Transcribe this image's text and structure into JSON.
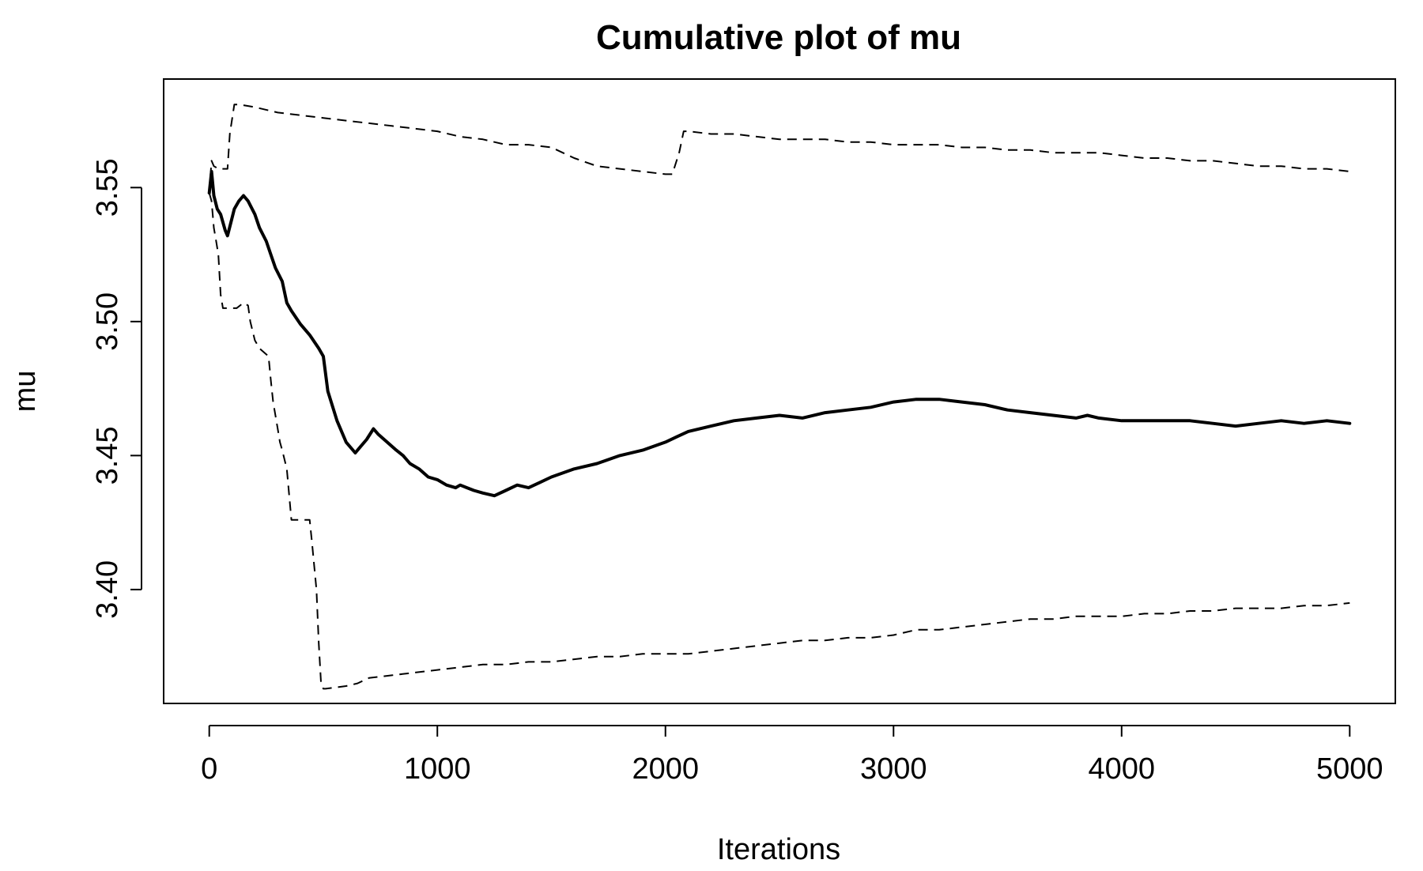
{
  "chart_data": {
    "type": "line",
    "title": "Cumulative plot of mu",
    "xlabel": "Iterations",
    "ylabel": "mu",
    "xlim": [
      -200,
      5200
    ],
    "ylim": [
      3.3575,
      3.5905
    ],
    "xticks": [
      0,
      1000,
      2000,
      3000,
      4000,
      5000
    ],
    "xtick_labels": [
      "0",
      "1000",
      "2000",
      "3000",
      "4000",
      "5000"
    ],
    "yticks": [
      3.4,
      3.45,
      3.5,
      3.55
    ],
    "ytick_labels": [
      "3.40",
      "3.45",
      "3.50",
      "3.55"
    ],
    "grid": false,
    "legend": "none",
    "series": [
      {
        "style": "solid",
        "x": [
          0,
          10,
          20,
          35,
          50,
          70,
          80,
          95,
          110,
          130,
          150,
          170,
          200,
          220,
          250,
          270,
          290,
          320,
          340,
          360,
          400,
          440,
          480,
          500,
          520,
          560,
          600,
          640,
          660,
          690,
          720,
          740,
          780,
          820,
          850,
          880,
          920,
          960,
          1000,
          1040,
          1080,
          1100,
          1130,
          1160,
          1200,
          1250,
          1300,
          1350,
          1400,
          1450,
          1500,
          1600,
          1700,
          1800,
          1900,
          2000,
          2050,
          2100,
          2200,
          2300,
          2400,
          2500,
          2600,
          2700,
          2800,
          2900,
          3000,
          3100,
          3150,
          3200,
          3300,
          3400,
          3500,
          3600,
          3700,
          3800,
          3850,
          3900,
          4000,
          4100,
          4200,
          4300,
          4400,
          4500,
          4600,
          4700,
          4800,
          4900,
          5000
        ],
        "y": [
          3.548,
          3.556,
          3.547,
          3.542,
          3.54,
          3.534,
          3.532,
          3.537,
          3.542,
          3.545,
          3.547,
          3.545,
          3.54,
          3.535,
          3.53,
          3.525,
          3.52,
          3.515,
          3.507,
          3.504,
          3.499,
          3.495,
          3.49,
          3.487,
          3.474,
          3.463,
          3.455,
          3.451,
          3.453,
          3.456,
          3.46,
          3.458,
          3.455,
          3.452,
          3.45,
          3.447,
          3.445,
          3.442,
          3.441,
          3.439,
          3.438,
          3.439,
          3.438,
          3.437,
          3.436,
          3.435,
          3.437,
          3.439,
          3.438,
          3.44,
          3.442,
          3.445,
          3.447,
          3.45,
          3.452,
          3.455,
          3.457,
          3.459,
          3.461,
          3.463,
          3.464,
          3.465,
          3.464,
          3.466,
          3.467,
          3.468,
          3.47,
          3.471,
          3.471,
          3.471,
          3.47,
          3.469,
          3.467,
          3.466,
          3.465,
          3.464,
          3.465,
          3.464,
          3.463,
          3.463,
          3.463,
          3.463,
          3.462,
          3.461,
          3.462,
          3.463,
          3.462,
          3.463,
          3.462
        ]
      },
      {
        "style": "dashed",
        "x": [
          0,
          10,
          20,
          40,
          80,
          90,
          110,
          130,
          200,
          300,
          400,
          500,
          600,
          700,
          800,
          900,
          1000,
          1100,
          1200,
          1300,
          1400,
          1500,
          1600,
          1700,
          1800,
          1900,
          2000,
          2030,
          2060,
          2080,
          2100,
          2200,
          2300,
          2400,
          2500,
          2600,
          2700,
          2800,
          2900,
          3000,
          3100,
          3200,
          3300,
          3400,
          3500,
          3600,
          3700,
          3800,
          3900,
          4000,
          4100,
          4200,
          4300,
          4400,
          4500,
          4600,
          4700,
          4800,
          4900,
          5000
        ],
        "y": [
          3.548,
          3.56,
          3.558,
          3.557,
          3.557,
          3.57,
          3.581,
          3.581,
          3.58,
          3.578,
          3.577,
          3.576,
          3.575,
          3.574,
          3.573,
          3.572,
          3.571,
          3.569,
          3.568,
          3.566,
          3.566,
          3.565,
          3.561,
          3.558,
          3.557,
          3.556,
          3.555,
          3.555,
          3.563,
          3.571,
          3.571,
          3.57,
          3.57,
          3.569,
          3.568,
          3.568,
          3.568,
          3.567,
          3.567,
          3.566,
          3.566,
          3.566,
          3.565,
          3.565,
          3.564,
          3.564,
          3.563,
          3.563,
          3.563,
          3.562,
          3.561,
          3.561,
          3.56,
          3.56,
          3.559,
          3.558,
          3.558,
          3.557,
          3.557,
          3.556
        ]
      },
      {
        "style": "dashed",
        "x": [
          0,
          10,
          20,
          30,
          40,
          50,
          60,
          120,
          150,
          170,
          180,
          200,
          220,
          260,
          270,
          280,
          300,
          310,
          320,
          340,
          360,
          380,
          400,
          440,
          450,
          470,
          480,
          490,
          500,
          510,
          600,
          650,
          700,
          800,
          900,
          1000,
          1100,
          1200,
          1300,
          1400,
          1500,
          1600,
          1700,
          1800,
          1900,
          2000,
          2100,
          2200,
          2300,
          2400,
          2500,
          2600,
          2700,
          2800,
          2900,
          3000,
          3100,
          3200,
          3300,
          3400,
          3500,
          3600,
          3700,
          3800,
          3900,
          4000,
          4100,
          4200,
          4300,
          4400,
          4500,
          4600,
          4700,
          4800,
          4900,
          5000
        ],
        "y": [
          3.548,
          3.545,
          3.535,
          3.53,
          3.525,
          3.51,
          3.505,
          3.505,
          3.507,
          3.506,
          3.5,
          3.493,
          3.49,
          3.487,
          3.478,
          3.47,
          3.46,
          3.455,
          3.452,
          3.445,
          3.426,
          3.426,
          3.426,
          3.426,
          3.418,
          3.4,
          3.38,
          3.365,
          3.363,
          3.363,
          3.364,
          3.365,
          3.367,
          3.368,
          3.369,
          3.37,
          3.371,
          3.372,
          3.372,
          3.373,
          3.373,
          3.374,
          3.375,
          3.375,
          3.376,
          3.376,
          3.376,
          3.377,
          3.378,
          3.379,
          3.38,
          3.381,
          3.381,
          3.382,
          3.382,
          3.383,
          3.385,
          3.385,
          3.386,
          3.387,
          3.388,
          3.389,
          3.389,
          3.39,
          3.39,
          3.39,
          3.391,
          3.391,
          3.392,
          3.392,
          3.393,
          3.393,
          3.393,
          3.394,
          3.394,
          3.395
        ]
      }
    ]
  }
}
